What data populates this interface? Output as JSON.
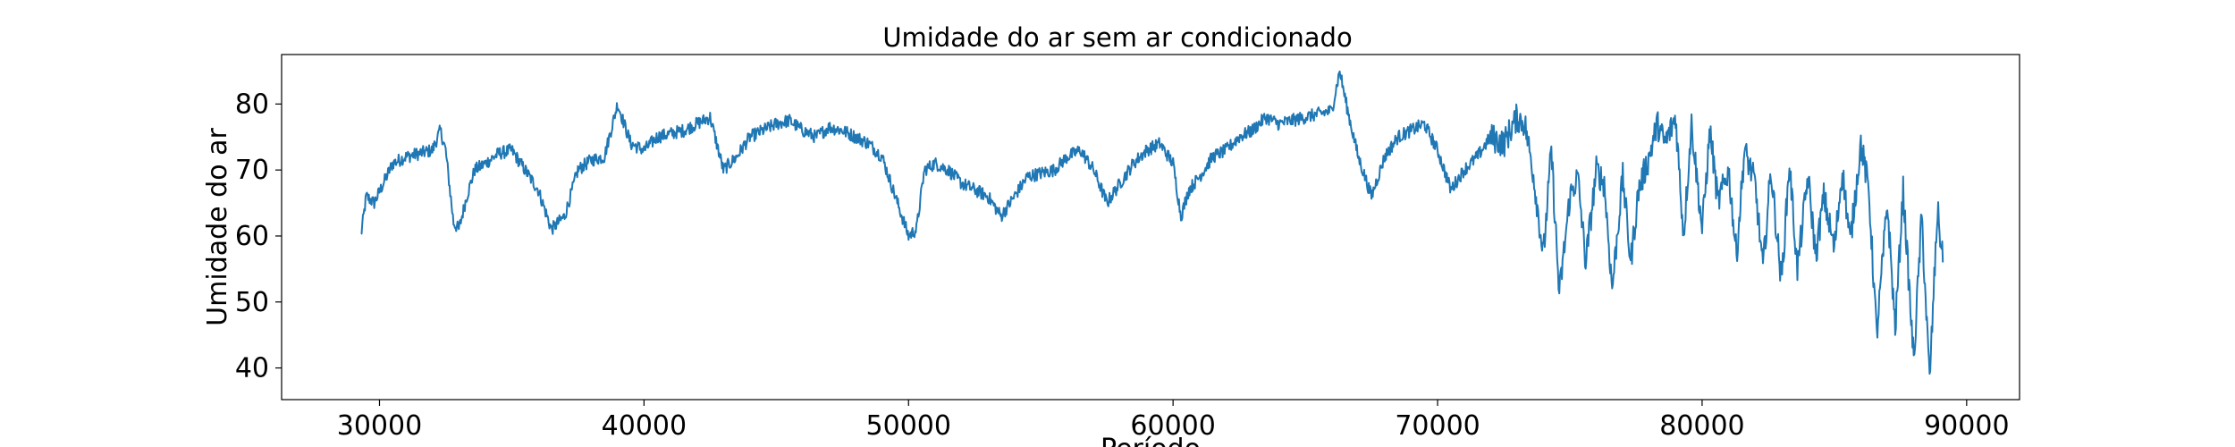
{
  "chart_data": {
    "type": "line",
    "title": "Umidade do ar sem ar condicionado",
    "xlabel": "Período",
    "ylabel": "Umidade do ar",
    "xlim": [
      26300,
      92000
    ],
    "ylim": [
      35.2,
      87.5
    ],
    "xticks": [
      30000,
      40000,
      50000,
      60000,
      70000,
      80000,
      90000
    ],
    "xtick_labels": [
      "30000",
      "40000",
      "50000",
      "60000",
      "70000",
      "80000",
      "90000"
    ],
    "yticks": [
      40,
      50,
      60,
      70,
      80
    ],
    "ytick_labels": [
      "40",
      "50",
      "60",
      "70",
      "80"
    ],
    "grid": false,
    "series": [
      {
        "name": "Umidade do ar",
        "color": "#1f77b4",
        "x": [
          29300,
          29400,
          29500,
          29800,
          30500,
          31000,
          31500,
          32000,
          32300,
          32500,
          32800,
          33000,
          33300,
          33600,
          34000,
          34500,
          35000,
          35500,
          36000,
          36500,
          37000,
          37500,
          38000,
          38500,
          39000,
          39500,
          40000,
          40500,
          41000,
          41500,
          42000,
          42500,
          43000,
          43500,
          44000,
          44500,
          45000,
          45500,
          46000,
          46500,
          47000,
          47500,
          48000,
          48500,
          49000,
          49500,
          50000,
          50300,
          50600,
          51000,
          51500,
          52000,
          52500,
          53000,
          53500,
          54000,
          54500,
          55000,
          55500,
          56000,
          56500,
          57000,
          57500,
          58000,
          58500,
          59000,
          59500,
          60000,
          60300,
          60600,
          61000,
          61500,
          62000,
          62500,
          63000,
          63500,
          64000,
          64500,
          65000,
          65500,
          66000,
          66300,
          66600,
          67000,
          67500,
          68000,
          68500,
          69000,
          69500,
          70000,
          70500,
          71000,
          71500,
          72000,
          72500,
          73000,
          73300,
          73600,
          74000,
          74300,
          74600,
          75000,
          75300,
          75600,
          76000,
          76300,
          76600,
          77000,
          77300,
          77600,
          78000,
          78300,
          78600,
          79000,
          79300,
          79600,
          80000,
          80300,
          80600,
          81000,
          81300,
          81600,
          82000,
          82300,
          82600,
          83000,
          83300,
          83600,
          84000,
          84300,
          84600,
          85000,
          85300,
          85600,
          86000,
          86300,
          86600,
          87000,
          87300,
          87600,
          88000,
          88300,
          88600,
          88900,
          89100
        ],
        "y": [
          60,
          63,
          66,
          65,
          71,
          72,
          72.5,
          73,
          76,
          73,
          62,
          61,
          66,
          70,
          71,
          72.5,
          73,
          70,
          67,
          61,
          63,
          70,
          71.5,
          72,
          80,
          74,
          73,
          75,
          75.5,
          76,
          77,
          78,
          70,
          72,
          75,
          76,
          77,
          77.5,
          76,
          75,
          76.5,
          76,
          75,
          74,
          72,
          66,
          60,
          61,
          70,
          71,
          70,
          68,
          67,
          66,
          63,
          66,
          69,
          69.5,
          70,
          72,
          73,
          70,
          65,
          68,
          71,
          73,
          74,
          71,
          63,
          67,
          69,
          72,
          73,
          75,
          76,
          78,
          77,
          77.5,
          78,
          78.5,
          79,
          85,
          79,
          72,
          66,
          72,
          75,
          76,
          77,
          73,
          67,
          70,
          72,
          75,
          74,
          78,
          77,
          70,
          57,
          73,
          51,
          66,
          69,
          56,
          70,
          68,
          52,
          69,
          56,
          67,
          72,
          77,
          74,
          78,
          60,
          77,
          61,
          76,
          65,
          70,
          57,
          73,
          68,
          55,
          70,
          53,
          71,
          55,
          69,
          57,
          66,
          58,
          70,
          59,
          74,
          67,
          45,
          65,
          46,
          67,
          41,
          63,
          38,
          64,
          56
        ]
      }
    ]
  }
}
